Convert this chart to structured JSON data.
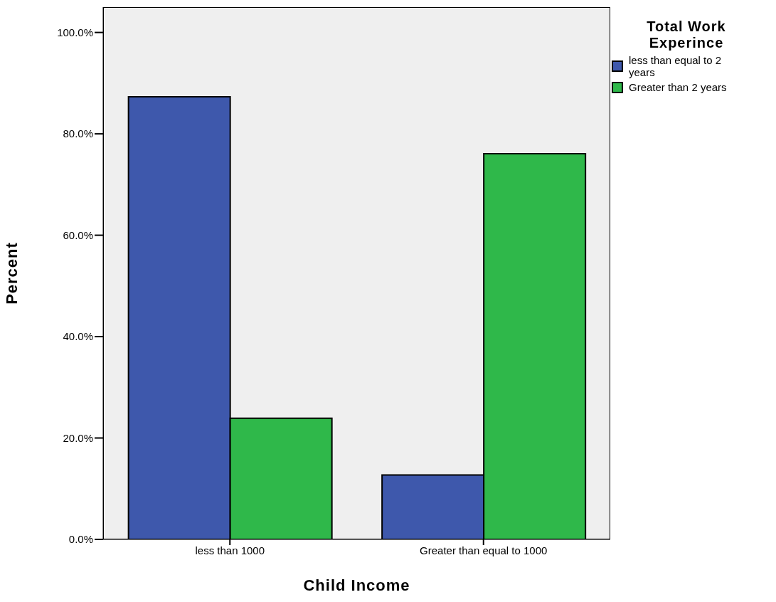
{
  "chart_data": {
    "type": "bar",
    "xlabel": "Child Income",
    "ylabel": "Percent",
    "legend_title": "Total Work Experince",
    "categories": [
      "less than 1000",
      "Greater than equal to 1000"
    ],
    "series": [
      {
        "name": "less than equal to 2 years",
        "color": "#3e58ac",
        "values": [
          87.3,
          12.7
        ]
      },
      {
        "name": "Greater than 2 years",
        "color": "#2fb84a",
        "values": [
          23.9,
          76.1
        ]
      }
    ],
    "ylim": [
      0,
      105
    ],
    "yticks": [
      {
        "value": 0,
        "label": "0.0%"
      },
      {
        "value": 20,
        "label": "20.0%"
      },
      {
        "value": 40,
        "label": "40.0%"
      },
      {
        "value": 60,
        "label": "60.0%"
      },
      {
        "value": 80,
        "label": "80.0%"
      },
      {
        "value": 100,
        "label": "100.0%"
      }
    ],
    "legend": "top right",
    "grid": false
  }
}
